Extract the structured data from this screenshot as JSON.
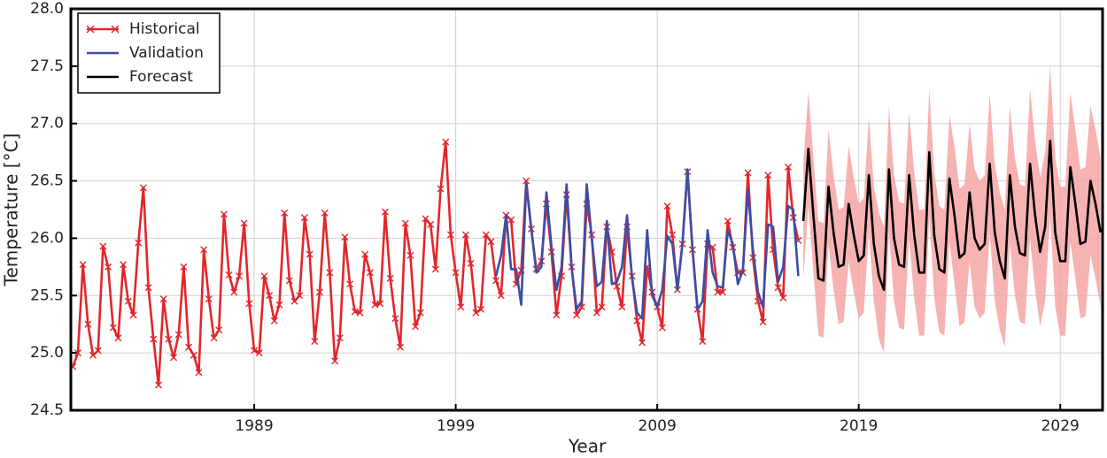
{
  "chart_data": {
    "type": "line",
    "x_label": "Year",
    "y_label": "Temperature [°C]",
    "xlim": [
      1979.9,
      2031.1
    ],
    "xticks": [
      1989,
      1999,
      2009,
      2019,
      2029
    ],
    "ylim": [
      24.5,
      28.0
    ],
    "yticks": [
      24.5,
      {
        "value": 25.0,
        "label": "25.0"
      },
      25.5,
      {
        "value": 26.0,
        "label": "26.0"
      },
      26.5,
      {
        "value": 27.0,
        "label": "27.0"
      },
      27.5,
      {
        "value": 28.0,
        "label": "28.0"
      }
    ],
    "grid": true,
    "legend": "upper left",
    "series": [
      {
        "name": "Historical",
        "color": "#e3262b",
        "marker": "x",
        "x": [
          1980,
          1980.25,
          1980.5,
          1980.75,
          1981,
          1981.25,
          1981.5,
          1981.75,
          1982,
          1982.25,
          1982.5,
          1982.75,
          1983,
          1983.25,
          1983.5,
          1983.75,
          1984,
          1984.25,
          1984.5,
          1984.75,
          1985,
          1985.25,
          1985.5,
          1985.75,
          1986,
          1986.25,
          1986.5,
          1986.75,
          1987,
          1987.25,
          1987.5,
          1987.75,
          1988,
          1988.25,
          1988.5,
          1988.75,
          1989,
          1989.25,
          1989.5,
          1989.75,
          1990,
          1990.25,
          1990.5,
          1990.75,
          1991,
          1991.25,
          1991.5,
          1991.75,
          1992,
          1992.25,
          1992.5,
          1992.75,
          1993,
          1993.25,
          1993.5,
          1993.75,
          1994,
          1994.25,
          1994.5,
          1994.75,
          1995,
          1995.25,
          1995.5,
          1995.75,
          1996,
          1996.25,
          1996.5,
          1996.75,
          1997,
          1997.25,
          1997.5,
          1997.75,
          1998,
          1998.25,
          1998.5,
          1998.75,
          1999,
          1999.25,
          1999.5,
          1999.75,
          2000,
          2000.25,
          2000.5,
          2000.75,
          2001,
          2001.25,
          2001.5,
          2001.75,
          2002,
          2002.25,
          2002.5,
          2002.75,
          2003,
          2003.25,
          2003.5,
          2003.75,
          2004,
          2004.25,
          2004.5,
          2004.75,
          2005,
          2005.25,
          2005.5,
          2005.75,
          2006,
          2006.25,
          2006.5,
          2006.75,
          2007,
          2007.25,
          2007.5,
          2007.75,
          2008,
          2008.25,
          2008.5,
          2008.75,
          2009,
          2009.25,
          2009.5,
          2009.75,
          2010,
          2010.25,
          2010.5,
          2010.75,
          2011,
          2011.25,
          2011.5,
          2011.75,
          2012,
          2012.25,
          2012.5,
          2012.75,
          2013,
          2013.25,
          2013.5,
          2013.75,
          2014,
          2014.25,
          2014.5,
          2014.75,
          2015,
          2015.25,
          2015.5,
          2015.75,
          2016
        ],
        "values": [
          24.88,
          25.0,
          25.77,
          25.25,
          24.98,
          25.02,
          25.93,
          25.75,
          25.22,
          25.13,
          25.77,
          25.45,
          25.33,
          25.96,
          26.44,
          25.57,
          25.12,
          24.72,
          25.47,
          25.12,
          24.96,
          25.16,
          25.75,
          25.05,
          24.98,
          24.83,
          25.9,
          25.47,
          25.13,
          25.2,
          26.21,
          25.68,
          25.53,
          25.67,
          26.13,
          25.43,
          25.02,
          25.0,
          25.67,
          25.5,
          25.28,
          25.42,
          26.22,
          25.63,
          25.45,
          25.5,
          26.18,
          25.86,
          25.1,
          25.53,
          26.22,
          25.7,
          24.93,
          25.13,
          26.01,
          25.6,
          25.36,
          25.35,
          25.86,
          25.7,
          25.42,
          25.43,
          26.23,
          25.65,
          25.3,
          25.05,
          26.13,
          25.85,
          25.23,
          25.35,
          26.17,
          26.12,
          25.73,
          26.43,
          26.84,
          26.03,
          25.7,
          25.4,
          26.03,
          25.78,
          25.35,
          25.38,
          26.03,
          25.97,
          25.63,
          25.5,
          26.2,
          26.16,
          25.6,
          25.72,
          26.5,
          26.08,
          25.73,
          25.8,
          26.3,
          25.88,
          25.33,
          25.67,
          26.38,
          25.75,
          25.33,
          25.4,
          26.3,
          26.03,
          25.35,
          25.4,
          26.1,
          25.88,
          25.58,
          25.4,
          26.1,
          25.67,
          25.28,
          25.09,
          25.75,
          25.53,
          25.4,
          25.22,
          26.28,
          26.03,
          25.55,
          25.95,
          26.58,
          25.9,
          25.38,
          25.1,
          25.95,
          25.92,
          25.53,
          25.53,
          26.15,
          25.92,
          25.7,
          25.7,
          26.57,
          25.83,
          25.45,
          25.27,
          26.55,
          25.9,
          25.57,
          25.48,
          26.62,
          26.18,
          25.98
        ]
      },
      {
        "name": "Validation",
        "color": "#3a4ea6",
        "x": [
          2001,
          2001.25,
          2001.5,
          2001.75,
          2002,
          2002.25,
          2002.5,
          2002.75,
          2003,
          2003.25,
          2003.5,
          2003.75,
          2004,
          2004.25,
          2004.5,
          2004.75,
          2005,
          2005.25,
          2005.5,
          2005.75,
          2006,
          2006.25,
          2006.5,
          2006.75,
          2007,
          2007.25,
          2007.5,
          2007.75,
          2008,
          2008.25,
          2008.5,
          2008.75,
          2009,
          2009.25,
          2009.5,
          2009.75,
          2010,
          2010.25,
          2010.5,
          2010.75,
          2011,
          2011.25,
          2011.5,
          2011.75,
          2012,
          2012.25,
          2012.5,
          2012.75,
          2013,
          2013.25,
          2013.5,
          2013.75,
          2014,
          2014.25,
          2014.5,
          2014.75,
          2015,
          2015.25,
          2015.5,
          2015.75,
          2016
        ],
        "values": [
          25.67,
          25.85,
          26.2,
          25.73,
          25.73,
          25.42,
          26.47,
          26.08,
          25.7,
          25.75,
          26.4,
          25.93,
          25.55,
          25.75,
          26.47,
          25.75,
          25.38,
          25.45,
          26.47,
          26.0,
          25.58,
          25.62,
          26.15,
          25.6,
          25.62,
          25.75,
          26.2,
          25.65,
          25.35,
          25.3,
          26.07,
          25.5,
          25.4,
          25.55,
          26.02,
          25.95,
          25.55,
          25.95,
          26.6,
          25.9,
          25.38,
          25.45,
          26.07,
          25.7,
          25.58,
          25.57,
          26.07,
          25.95,
          25.6,
          25.72,
          26.42,
          25.9,
          25.53,
          25.4,
          26.12,
          26.1,
          25.62,
          25.75,
          26.28,
          26.25,
          25.67
        ]
      },
      {
        "name": "Forecast",
        "color": "#000000",
        "band_color": "#f6a5a5",
        "x": [
          2016.25,
          2016.5,
          2016.75,
          2017,
          2017.25,
          2017.5,
          2017.75,
          2018,
          2018.25,
          2018.5,
          2018.75,
          2019,
          2019.25,
          2019.5,
          2019.75,
          2020,
          2020.25,
          2020.5,
          2020.75,
          2021,
          2021.25,
          2021.5,
          2021.75,
          2022,
          2022.25,
          2022.5,
          2022.75,
          2023,
          2023.25,
          2023.5,
          2023.75,
          2024,
          2024.25,
          2024.5,
          2024.75,
          2025,
          2025.25,
          2025.5,
          2025.75,
          2026,
          2026.25,
          2026.5,
          2026.75,
          2027,
          2027.25,
          2027.5,
          2027.75,
          2028,
          2028.25,
          2028.5,
          2028.75,
          2029,
          2029.25,
          2029.5,
          2029.75,
          2030,
          2030.25,
          2030.5,
          2030.75,
          2031
        ],
        "values": [
          26.15,
          26.78,
          26.2,
          25.65,
          25.63,
          26.45,
          26.05,
          25.75,
          25.77,
          26.3,
          26.03,
          25.8,
          25.85,
          26.55,
          25.95,
          25.67,
          25.55,
          26.6,
          26.0,
          25.77,
          25.75,
          26.55,
          26.03,
          25.7,
          25.7,
          26.75,
          26.02,
          25.73,
          25.7,
          26.52,
          26.2,
          25.83,
          25.87,
          26.4,
          26.0,
          25.9,
          25.95,
          26.65,
          26.05,
          25.8,
          25.65,
          26.55,
          26.1,
          25.87,
          25.85,
          26.65,
          26.2,
          25.88,
          26.1,
          26.85,
          26.05,
          25.8,
          25.8,
          26.62,
          26.3,
          25.95,
          25.97,
          26.5,
          26.3,
          26.05
        ],
        "upper": [
          26.65,
          27.28,
          26.7,
          26.15,
          26.13,
          26.95,
          26.55,
          26.25,
          26.27,
          26.8,
          26.53,
          26.3,
          26.35,
          27.05,
          26.45,
          26.22,
          26.1,
          27.15,
          26.55,
          26.32,
          26.3,
          27.1,
          26.58,
          26.25,
          26.25,
          27.3,
          26.57,
          26.28,
          26.25,
          27.07,
          26.8,
          26.43,
          26.47,
          27.0,
          26.6,
          26.5,
          26.55,
          27.25,
          26.65,
          26.4,
          26.25,
          27.15,
          26.7,
          26.47,
          26.45,
          27.3,
          26.85,
          26.53,
          26.75,
          27.5,
          26.7,
          26.45,
          26.45,
          27.27,
          26.95,
          26.6,
          26.62,
          27.15,
          26.95,
          26.7
        ],
        "lower": [
          25.65,
          26.28,
          25.7,
          25.15,
          25.13,
          25.95,
          25.55,
          25.25,
          25.27,
          25.8,
          25.53,
          25.3,
          25.35,
          26.05,
          25.45,
          25.12,
          25.0,
          26.05,
          25.45,
          25.22,
          25.2,
          26.0,
          25.48,
          25.15,
          25.15,
          26.2,
          25.47,
          25.18,
          25.15,
          25.97,
          25.6,
          25.23,
          25.27,
          25.8,
          25.4,
          25.3,
          25.35,
          26.05,
          25.45,
          25.2,
          25.05,
          25.95,
          25.5,
          25.27,
          25.25,
          26.0,
          25.55,
          25.23,
          25.45,
          26.2,
          25.4,
          25.15,
          25.15,
          25.97,
          25.65,
          25.3,
          25.32,
          25.85,
          25.65,
          25.4
        ]
      }
    ]
  }
}
